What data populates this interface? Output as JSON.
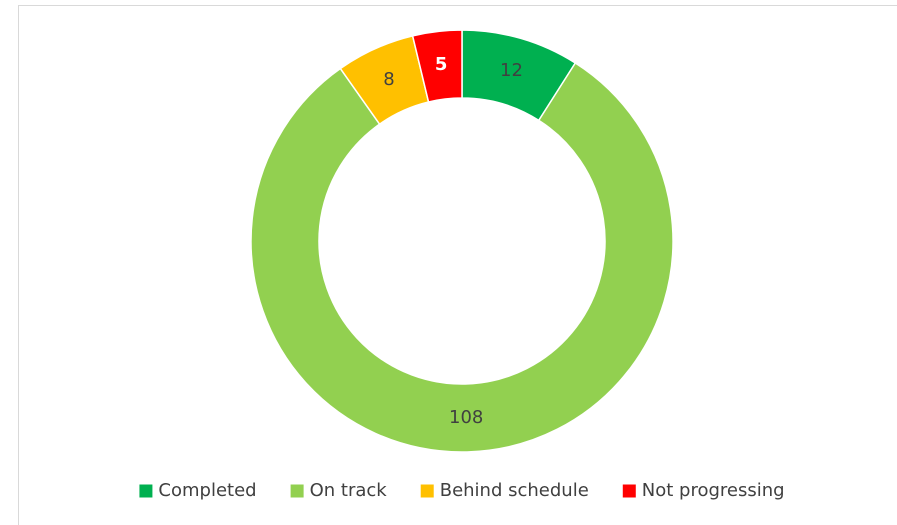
{
  "chart_data": {
    "type": "donut",
    "categories": [
      "Completed",
      "On track",
      "Behind schedule",
      "Not progressing"
    ],
    "values": [
      12,
      108,
      8,
      5
    ],
    "colors": [
      "#00b050",
      "#92d050",
      "#ffc000",
      "#ff0000"
    ],
    "label_colors": [
      "#404040",
      "#404040",
      "#404040",
      "#ffffff"
    ],
    "legend": "bottom"
  }
}
